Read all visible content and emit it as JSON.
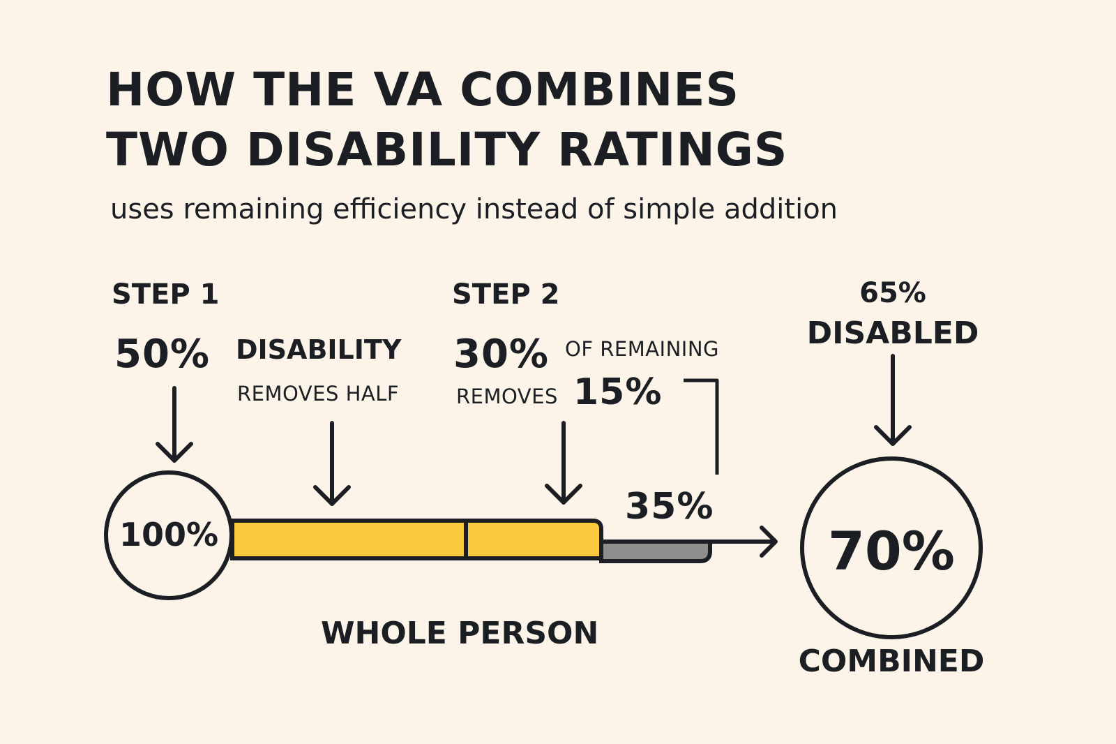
{
  "title": {
    "line1": "HOW THE VA COMBINES",
    "line2": "TWO DISABILITY RATINGS"
  },
  "subtitle": "uses remaining efficiency instead of simple addition",
  "step1": {
    "label": "STEP 1",
    "percent": "50%",
    "descriptor": "DISABILITY",
    "note": "REMOVES HALF"
  },
  "step2": {
    "label": "STEP 2",
    "percent": "30%",
    "descriptor": "OF REMAINING",
    "note": "REMOVES",
    "removed": "15%"
  },
  "start_circle": {
    "value": "100%"
  },
  "remaining": "35%",
  "bar_caption": "WHOLE PERSON",
  "result": {
    "headline_value": "65%",
    "headline_label": "DISABLED",
    "circle_value": "70%",
    "caption": "COMBINED"
  },
  "colors": {
    "background": "#fcf4e8",
    "ink": "#1b1f24",
    "yellow": "#fbc93d",
    "gray": "#8e8e8c"
  }
}
